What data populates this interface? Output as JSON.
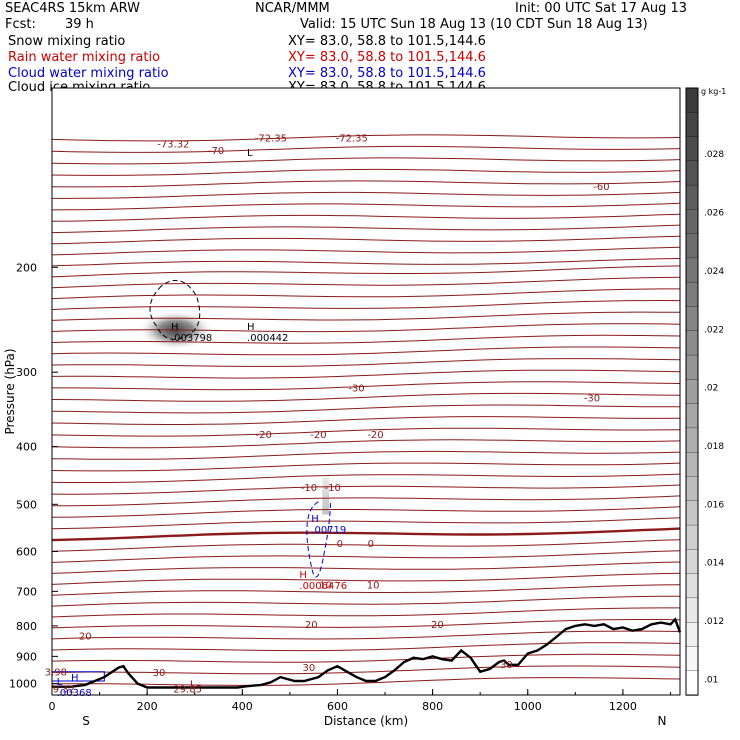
{
  "header": {
    "model": "SEAC4RS 15km ARW",
    "org": "NCAR/MMM",
    "init": "Init: 00 UTC Sat 17 Aug 13",
    "fcst_label": "Fcst:",
    "fcst_value": "39 h",
    "valid": "Valid: 15 UTC Sun 18 Aug 13 (10 CDT Sun 18 Aug 13)",
    "fields": [
      {
        "name": "Snow mixing ratio",
        "xy": "XY=  83.0, 58.8 to 101.5,144.6",
        "color": "#000000"
      },
      {
        "name": "Rain water mixing ratio",
        "xy": "XY=  83.0, 58.8 to 101.5,144.6",
        "color": "#cc0000"
      },
      {
        "name": "Cloud water mixing ratio",
        "xy": "XY=  83.0, 58.8 to 101.5,144.6",
        "color": "#0000cc"
      },
      {
        "name": "Cloud ice mixing ratio",
        "xy": "XY=  83.0, 58.8 to 101.5,144.6",
        "color": "#000000"
      }
    ]
  },
  "chart_data": {
    "type": "contour",
    "xlabel": "Distance (km)",
    "ylabel": "Pressure (hPa)",
    "x_ticks": [
      0,
      200,
      400,
      600,
      800,
      1000,
      1200
    ],
    "y_ticks": [
      200,
      300,
      400,
      500,
      600,
      700,
      800,
      900,
      1000
    ],
    "xlim": [
      0,
      1320
    ],
    "ylim": [
      1045,
      100
    ],
    "y_scale": "log",
    "x_end_labels": {
      "left": "S",
      "right": "N"
    },
    "isotherm_color": "#8b1a1a",
    "temperature_labels": [
      {
        "text": "-73.32",
        "x": 255,
        "p": 124
      },
      {
        "text": "-70",
        "x": 345,
        "p": 127
      },
      {
        "text": "-72.35",
        "x": 460,
        "p": 121
      },
      {
        "text": "-72.35",
        "x": 630,
        "p": 121
      },
      {
        "text": "-60",
        "x": 1155,
        "p": 146
      },
      {
        "text": "-30",
        "x": 640,
        "p": 318
      },
      {
        "text": "-30",
        "x": 1135,
        "p": 331
      },
      {
        "text": "-20",
        "x": 560,
        "p": 381
      },
      {
        "text": "-20",
        "x": 680,
        "p": 381
      },
      {
        "text": "-20",
        "x": 445,
        "p": 381
      },
      {
        "text": "-10",
        "x": 540,
        "p": 468
      },
      {
        "text": "-10",
        "x": 590,
        "p": 468
      },
      {
        "text": "0",
        "x": 605,
        "p": 581
      },
      {
        "text": "0",
        "x": 670,
        "p": 581
      },
      {
        "text": "10",
        "x": 575,
        "p": 682
      },
      {
        "text": "10",
        "x": 675,
        "p": 682
      },
      {
        "text": "20",
        "x": 545,
        "p": 794
      },
      {
        "text": "20",
        "x": 810,
        "p": 794
      },
      {
        "text": "20",
        "x": 70,
        "p": 830
      },
      {
        "text": "30",
        "x": 225,
        "p": 957
      },
      {
        "text": "30",
        "x": 540,
        "p": 937
      },
      {
        "text": "30",
        "x": 955,
        "p": 927
      },
      {
        "text": "3.98",
        "x": 8,
        "p": 955
      },
      {
        "text": "9.32",
        "x": 25,
        "p": 1020
      }
    ],
    "extrema": [
      {
        "type": "H",
        "value": ".003798",
        "x": 250,
        "p": 255,
        "color": "#000000"
      },
      {
        "type": "H",
        "value": ".000442",
        "x": 410,
        "p": 255,
        "color": "#000000"
      },
      {
        "type": "H",
        "value": ".00719",
        "x": 545,
        "p": 535,
        "color": "#0000cc"
      },
      {
        "type": "H",
        "value": ".0006476",
        "x": 520,
        "p": 665,
        "color": "#cc0000"
      },
      {
        "type": "H",
        "value": "",
        "x": 40,
        "p": 990,
        "color": "#0000cc"
      },
      {
        "type": "L",
        "value": ".00368",
        "x": 10,
        "p": 1005,
        "color": "#0000cc"
      },
      {
        "type": "L",
        "value": "",
        "x": 290,
        "p": 1015,
        "color": "#8b1a1a"
      },
      {
        "type": "L",
        "value": "",
        "x": 410,
        "p": 130,
        "color": "#000000"
      },
      {
        "type": "",
        "value": "29.85",
        "x": 255,
        "p": 1035,
        "color": "#8b1a1a"
      }
    ],
    "terrain_profile": {
      "x": [
        0,
        40,
        70,
        110,
        140,
        150,
        160,
        180,
        200,
        210,
        230,
        260,
        300,
        350,
        390,
        410,
        440,
        460,
        480,
        510,
        530,
        560,
        580,
        600,
        620,
        640,
        660,
        680,
        700,
        720,
        740,
        760,
        780,
        800,
        820,
        840,
        860,
        880,
        890,
        900,
        920,
        940,
        950,
        960,
        980,
        1000,
        1020,
        1040,
        1060,
        1080,
        1100,
        1120,
        1140,
        1160,
        1180,
        1200,
        1220,
        1240,
        1260,
        1280,
        1300,
        1310,
        1320
      ],
      "p": [
        1012,
        1012,
        1005,
        975,
        940,
        935,
        960,
        1000,
        1015,
        1015,
        1015,
        1015,
        1015,
        1015,
        1015,
        1010,
        1005,
        995,
        975,
        990,
        990,
        975,
        950,
        935,
        955,
        975,
        990,
        990,
        975,
        950,
        920,
        905,
        910,
        900,
        910,
        915,
        880,
        905,
        930,
        955,
        945,
        920,
        915,
        930,
        930,
        890,
        880,
        860,
        835,
        810,
        800,
        795,
        800,
        795,
        810,
        805,
        815,
        810,
        795,
        790,
        795,
        780,
        820
      ]
    },
    "colorbar": {
      "unit": "g kg-1",
      "labels": [
        ".028",
        ".026",
        ".024",
        ".022",
        ".02",
        ".018",
        ".016",
        ".014",
        ".012",
        ".01"
      ]
    }
  }
}
